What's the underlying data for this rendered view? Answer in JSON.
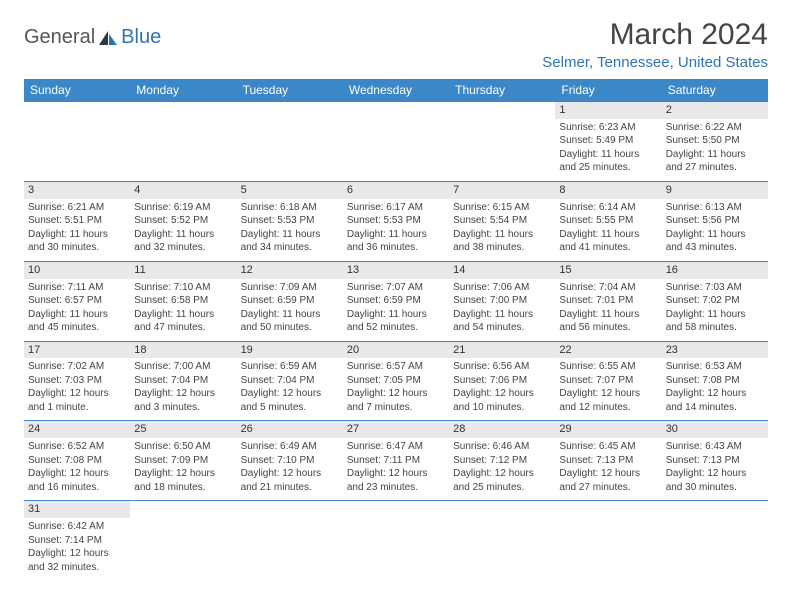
{
  "logo": {
    "part1": "General",
    "part2": "Blue"
  },
  "title": "March 2024",
  "location": "Selmer, Tennessee, United States",
  "colors": {
    "header_bg": "#3b87c8",
    "header_fg": "#ffffff",
    "accent": "#2f73b5",
    "cell_border": "#3b87c8",
    "daynum_bg": "#e9e9e9",
    "text": "#444444"
  },
  "day_headers": [
    "Sunday",
    "Monday",
    "Tuesday",
    "Wednesday",
    "Thursday",
    "Friday",
    "Saturday"
  ],
  "weeks": [
    [
      {
        "day": "",
        "lines": []
      },
      {
        "day": "",
        "lines": []
      },
      {
        "day": "",
        "lines": []
      },
      {
        "day": "",
        "lines": []
      },
      {
        "day": "",
        "lines": []
      },
      {
        "day": "1",
        "lines": [
          "Sunrise: 6:23 AM",
          "Sunset: 5:49 PM",
          "Daylight: 11 hours",
          "and 25 minutes."
        ]
      },
      {
        "day": "2",
        "lines": [
          "Sunrise: 6:22 AM",
          "Sunset: 5:50 PM",
          "Daylight: 11 hours",
          "and 27 minutes."
        ]
      }
    ],
    [
      {
        "day": "3",
        "lines": [
          "Sunrise: 6:21 AM",
          "Sunset: 5:51 PM",
          "Daylight: 11 hours",
          "and 30 minutes."
        ]
      },
      {
        "day": "4",
        "lines": [
          "Sunrise: 6:19 AM",
          "Sunset: 5:52 PM",
          "Daylight: 11 hours",
          "and 32 minutes."
        ]
      },
      {
        "day": "5",
        "lines": [
          "Sunrise: 6:18 AM",
          "Sunset: 5:53 PM",
          "Daylight: 11 hours",
          "and 34 minutes."
        ]
      },
      {
        "day": "6",
        "lines": [
          "Sunrise: 6:17 AM",
          "Sunset: 5:53 PM",
          "Daylight: 11 hours",
          "and 36 minutes."
        ]
      },
      {
        "day": "7",
        "lines": [
          "Sunrise: 6:15 AM",
          "Sunset: 5:54 PM",
          "Daylight: 11 hours",
          "and 38 minutes."
        ]
      },
      {
        "day": "8",
        "lines": [
          "Sunrise: 6:14 AM",
          "Sunset: 5:55 PM",
          "Daylight: 11 hours",
          "and 41 minutes."
        ]
      },
      {
        "day": "9",
        "lines": [
          "Sunrise: 6:13 AM",
          "Sunset: 5:56 PM",
          "Daylight: 11 hours",
          "and 43 minutes."
        ]
      }
    ],
    [
      {
        "day": "10",
        "lines": [
          "Sunrise: 7:11 AM",
          "Sunset: 6:57 PM",
          "Daylight: 11 hours",
          "and 45 minutes."
        ]
      },
      {
        "day": "11",
        "lines": [
          "Sunrise: 7:10 AM",
          "Sunset: 6:58 PM",
          "Daylight: 11 hours",
          "and 47 minutes."
        ]
      },
      {
        "day": "12",
        "lines": [
          "Sunrise: 7:09 AM",
          "Sunset: 6:59 PM",
          "Daylight: 11 hours",
          "and 50 minutes."
        ]
      },
      {
        "day": "13",
        "lines": [
          "Sunrise: 7:07 AM",
          "Sunset: 6:59 PM",
          "Daylight: 11 hours",
          "and 52 minutes."
        ]
      },
      {
        "day": "14",
        "lines": [
          "Sunrise: 7:06 AM",
          "Sunset: 7:00 PM",
          "Daylight: 11 hours",
          "and 54 minutes."
        ]
      },
      {
        "day": "15",
        "lines": [
          "Sunrise: 7:04 AM",
          "Sunset: 7:01 PM",
          "Daylight: 11 hours",
          "and 56 minutes."
        ]
      },
      {
        "day": "16",
        "lines": [
          "Sunrise: 7:03 AM",
          "Sunset: 7:02 PM",
          "Daylight: 11 hours",
          "and 58 minutes."
        ]
      }
    ],
    [
      {
        "day": "17",
        "lines": [
          "Sunrise: 7:02 AM",
          "Sunset: 7:03 PM",
          "Daylight: 12 hours",
          "and 1 minute."
        ]
      },
      {
        "day": "18",
        "lines": [
          "Sunrise: 7:00 AM",
          "Sunset: 7:04 PM",
          "Daylight: 12 hours",
          "and 3 minutes."
        ]
      },
      {
        "day": "19",
        "lines": [
          "Sunrise: 6:59 AM",
          "Sunset: 7:04 PM",
          "Daylight: 12 hours",
          "and 5 minutes."
        ]
      },
      {
        "day": "20",
        "lines": [
          "Sunrise: 6:57 AM",
          "Sunset: 7:05 PM",
          "Daylight: 12 hours",
          "and 7 minutes."
        ]
      },
      {
        "day": "21",
        "lines": [
          "Sunrise: 6:56 AM",
          "Sunset: 7:06 PM",
          "Daylight: 12 hours",
          "and 10 minutes."
        ]
      },
      {
        "day": "22",
        "lines": [
          "Sunrise: 6:55 AM",
          "Sunset: 7:07 PM",
          "Daylight: 12 hours",
          "and 12 minutes."
        ]
      },
      {
        "day": "23",
        "lines": [
          "Sunrise: 6:53 AM",
          "Sunset: 7:08 PM",
          "Daylight: 12 hours",
          "and 14 minutes."
        ]
      }
    ],
    [
      {
        "day": "24",
        "lines": [
          "Sunrise: 6:52 AM",
          "Sunset: 7:08 PM",
          "Daylight: 12 hours",
          "and 16 minutes."
        ]
      },
      {
        "day": "25",
        "lines": [
          "Sunrise: 6:50 AM",
          "Sunset: 7:09 PM",
          "Daylight: 12 hours",
          "and 18 minutes."
        ]
      },
      {
        "day": "26",
        "lines": [
          "Sunrise: 6:49 AM",
          "Sunset: 7:10 PM",
          "Daylight: 12 hours",
          "and 21 minutes."
        ]
      },
      {
        "day": "27",
        "lines": [
          "Sunrise: 6:47 AM",
          "Sunset: 7:11 PM",
          "Daylight: 12 hours",
          "and 23 minutes."
        ]
      },
      {
        "day": "28",
        "lines": [
          "Sunrise: 6:46 AM",
          "Sunset: 7:12 PM",
          "Daylight: 12 hours",
          "and 25 minutes."
        ]
      },
      {
        "day": "29",
        "lines": [
          "Sunrise: 6:45 AM",
          "Sunset: 7:13 PM",
          "Daylight: 12 hours",
          "and 27 minutes."
        ]
      },
      {
        "day": "30",
        "lines": [
          "Sunrise: 6:43 AM",
          "Sunset: 7:13 PM",
          "Daylight: 12 hours",
          "and 30 minutes."
        ]
      }
    ],
    [
      {
        "day": "31",
        "lines": [
          "Sunrise: 6:42 AM",
          "Sunset: 7:14 PM",
          "Daylight: 12 hours",
          "and 32 minutes."
        ]
      },
      {
        "day": "",
        "lines": []
      },
      {
        "day": "",
        "lines": []
      },
      {
        "day": "",
        "lines": []
      },
      {
        "day": "",
        "lines": []
      },
      {
        "day": "",
        "lines": []
      },
      {
        "day": "",
        "lines": []
      }
    ]
  ]
}
